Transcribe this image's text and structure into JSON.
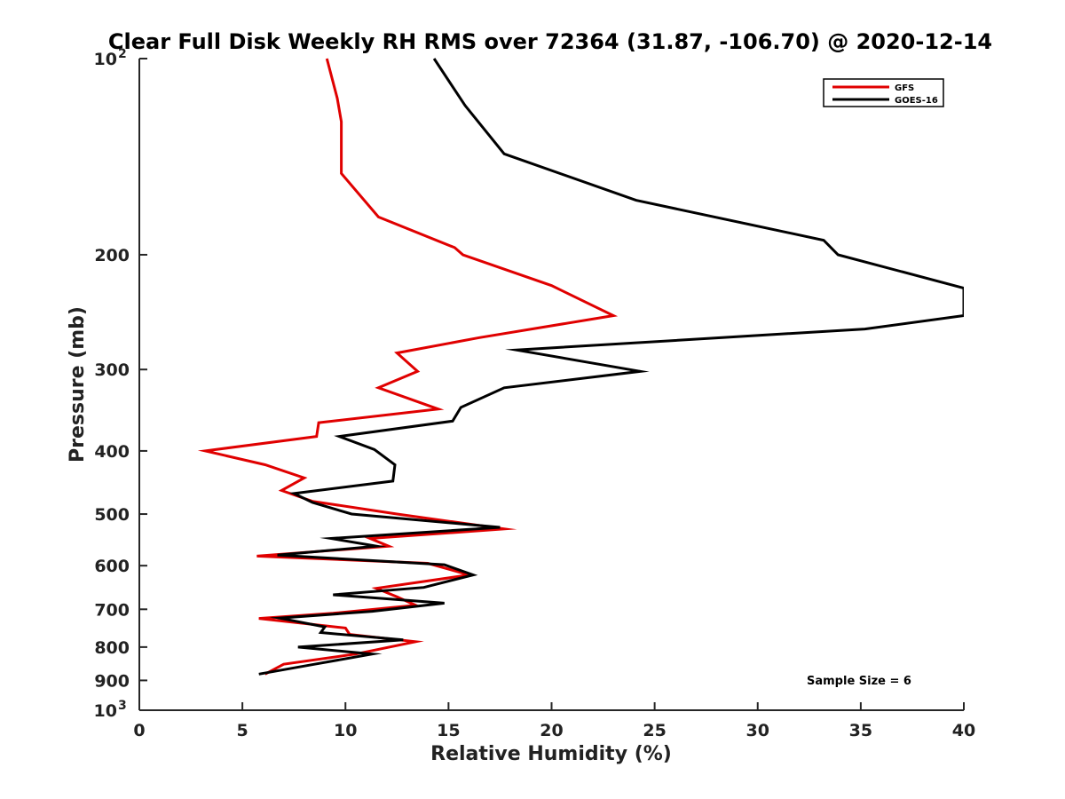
{
  "chart_data": {
    "type": "line",
    "title": "Clear Full Disk Weekly RH RMS over 72364 (31.87, -106.70) @ 2020-12-14",
    "xlabel": "Relative Humidity (%)",
    "ylabel": "Pressure (mb)",
    "xlim": [
      0,
      40
    ],
    "ylim": [
      100,
      1000
    ],
    "yscale": "log",
    "y_reversed": true,
    "grid": false,
    "legend_position": "top-right",
    "x_ticks": [
      "0",
      "5",
      "10",
      "15",
      "20",
      "25",
      "30",
      "35",
      "40"
    ],
    "y_ticks": [
      {
        "value": 100,
        "label": "10",
        "sup": "2"
      },
      {
        "value": 200,
        "label": "200",
        "sup": ""
      },
      {
        "value": 300,
        "label": "300",
        "sup": ""
      },
      {
        "value": 400,
        "label": "400",
        "sup": ""
      },
      {
        "value": 500,
        "label": "500",
        "sup": ""
      },
      {
        "value": 600,
        "label": "600",
        "sup": ""
      },
      {
        "value": 700,
        "label": "700",
        "sup": ""
      },
      {
        "value": 800,
        "label": "800",
        "sup": ""
      },
      {
        "value": 900,
        "label": "900",
        "sup": ""
      },
      {
        "value": 1000,
        "label": "10",
        "sup": "3"
      }
    ],
    "series": [
      {
        "name": "GFS",
        "color": "#e00000",
        "points": [
          [
            9.1,
            100
          ],
          [
            9.6,
            115
          ],
          [
            9.8,
            125
          ],
          [
            9.8,
            150
          ],
          [
            11.6,
            175
          ],
          [
            15.3,
            195
          ],
          [
            15.7,
            200
          ],
          [
            20.0,
            223
          ],
          [
            23.0,
            248
          ],
          [
            16.5,
            268
          ],
          [
            12.5,
            283
          ],
          [
            13.5,
            302
          ],
          [
            11.6,
            320
          ],
          [
            14.5,
            345
          ],
          [
            8.7,
            362
          ],
          [
            8.6,
            380
          ],
          [
            3.2,
            400
          ],
          [
            6.1,
            420
          ],
          [
            8.0,
            440
          ],
          [
            6.9,
            460
          ],
          [
            8.4,
            478
          ],
          [
            12.5,
            500
          ],
          [
            17.7,
            527
          ],
          [
            11.2,
            545
          ],
          [
            12.1,
            560
          ],
          [
            5.7,
            580
          ],
          [
            14.0,
            595
          ],
          [
            16.0,
            620
          ],
          [
            11.5,
            650
          ],
          [
            12.5,
            670
          ],
          [
            13.4,
            690
          ],
          [
            9.4,
            710
          ],
          [
            5.8,
            723
          ],
          [
            10.0,
            748
          ],
          [
            10.2,
            765
          ],
          [
            13.4,
            785
          ],
          [
            10.5,
            820
          ],
          [
            7.0,
            850
          ],
          [
            6.1,
            880
          ]
        ]
      },
      {
        "name": "GOES-16",
        "color": "#000000",
        "points": [
          [
            14.3,
            100
          ],
          [
            15.8,
            118
          ],
          [
            17.7,
            140
          ],
          [
            24.1,
            165
          ],
          [
            33.2,
            190
          ],
          [
            33.9,
            200
          ],
          [
            40.0,
            225
          ],
          [
            40.0,
            248
          ],
          [
            35.2,
            260
          ],
          [
            18.3,
            280
          ],
          [
            24.3,
            302
          ],
          [
            17.7,
            320
          ],
          [
            15.6,
            343
          ],
          [
            15.2,
            360
          ],
          [
            9.7,
            380
          ],
          [
            11.4,
            398
          ],
          [
            12.4,
            420
          ],
          [
            12.3,
            445
          ],
          [
            7.5,
            465
          ],
          [
            8.4,
            480
          ],
          [
            10.3,
            500
          ],
          [
            17.5,
            524
          ],
          [
            9.3,
            545
          ],
          [
            11.5,
            560
          ],
          [
            6.7,
            578
          ],
          [
            14.8,
            598
          ],
          [
            16.2,
            620
          ],
          [
            13.8,
            648
          ],
          [
            9.4,
            665
          ],
          [
            14.8,
            685
          ],
          [
            11.3,
            705
          ],
          [
            6.8,
            722
          ],
          [
            9.0,
            745
          ],
          [
            8.8,
            760
          ],
          [
            12.8,
            780
          ],
          [
            7.7,
            800
          ],
          [
            11.3,
            820
          ],
          [
            8.5,
            850
          ],
          [
            5.8,
            880
          ]
        ]
      }
    ],
    "annotations": [
      {
        "text": "Sample Size = 6"
      }
    ]
  }
}
